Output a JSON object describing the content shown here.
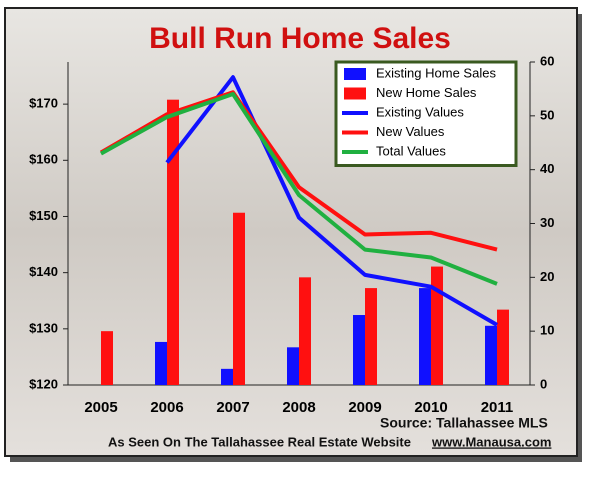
{
  "chart_data": {
    "type": "bar",
    "title": "Bull Run Home Sales",
    "source": "Source: Tallahassee MLS",
    "footer": "As Seen On The Tallahassee Real Estate Website",
    "website": "www.Manausa.com",
    "categories": [
      "2005",
      "2006",
      "2007",
      "2008",
      "2009",
      "2010",
      "2011"
    ],
    "series": [
      {
        "name": "Existing Home Sales",
        "type": "bar",
        "axis": "y2",
        "color": "#1010ff",
        "values": [
          0,
          8,
          3,
          7,
          13,
          18,
          11
        ]
      },
      {
        "name": "New Home Sales",
        "type": "bar",
        "axis": "y2",
        "color": "#ff1010",
        "values": [
          10,
          53,
          32,
          20,
          18,
          22,
          14
        ]
      },
      {
        "name": "Existing Values",
        "type": "line",
        "color": "#1010ff",
        "values": [
          null,
          159.6,
          174.8,
          149.8,
          139.6,
          137.5,
          130.7
        ]
      },
      {
        "name": "New Values",
        "type": "line",
        "color": "#ff1010",
        "values": [
          161.4,
          168.2,
          172.1,
          155.2,
          146.8,
          147.1,
          144.1
        ]
      },
      {
        "name": "Total Values",
        "type": "line",
        "color": "#20b040",
        "values": [
          161.2,
          167.7,
          171.8,
          153.8,
          144.1,
          142.7,
          138
        ]
      }
    ],
    "ylim": [
      120,
      177.5
    ],
    "yticks": [
      {
        "value": 120,
        "label": "$120"
      },
      {
        "value": 130,
        "label": "$130"
      },
      {
        "value": 140,
        "label": "$140"
      },
      {
        "value": 150,
        "label": "$150"
      },
      {
        "value": 160,
        "label": "$160"
      },
      {
        "value": 170,
        "label": "$170"
      }
    ],
    "y2lim": [
      0,
      60
    ],
    "y2ticks": [
      0,
      10,
      20,
      30,
      40,
      50,
      60
    ],
    "legend": "top-right"
  }
}
